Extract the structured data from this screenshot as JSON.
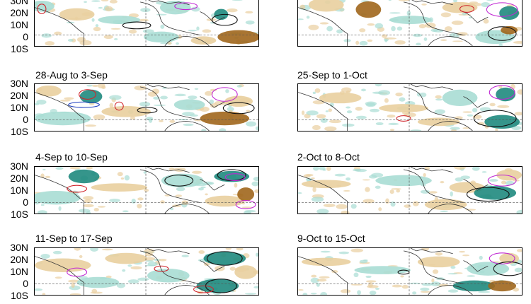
{
  "lat_labels": [
    "30N",
    "20N",
    "10N",
    "0",
    "10S"
  ],
  "colors": {
    "positive_fill_dark": "#1f8a7e",
    "positive_fill_light": "#a9ddd4",
    "negative_fill_dark": "#a0661c",
    "negative_fill_light": "#e9cf9f",
    "contour_red": "#d0242b",
    "contour_magenta": "#c026d3",
    "contour_blue": "#1e3fbf",
    "contour_black": "#111111",
    "coastline": "#333333"
  },
  "panels": [
    {
      "id": "l0",
      "column": "left",
      "row": 0,
      "title": ""
    },
    {
      "id": "r0",
      "column": "right",
      "row": 0,
      "title": ""
    },
    {
      "id": "l1",
      "column": "left",
      "row": 1,
      "title": "28-Aug to 3-Sep"
    },
    {
      "id": "r1",
      "column": "right",
      "row": 1,
      "title": "25-Sep to 1-Oct"
    },
    {
      "id": "l2",
      "column": "left",
      "row": 2,
      "title": "4-Sep to 10-Sep"
    },
    {
      "id": "r2",
      "column": "right",
      "row": 2,
      "title": "2-Oct to 8-Oct"
    },
    {
      "id": "l3",
      "column": "left",
      "row": 3,
      "title": "11-Sep to 17-Sep"
    },
    {
      "id": "r3",
      "column": "right",
      "row": 3,
      "title": "9-Oct to 15-Oct"
    }
  ]
}
